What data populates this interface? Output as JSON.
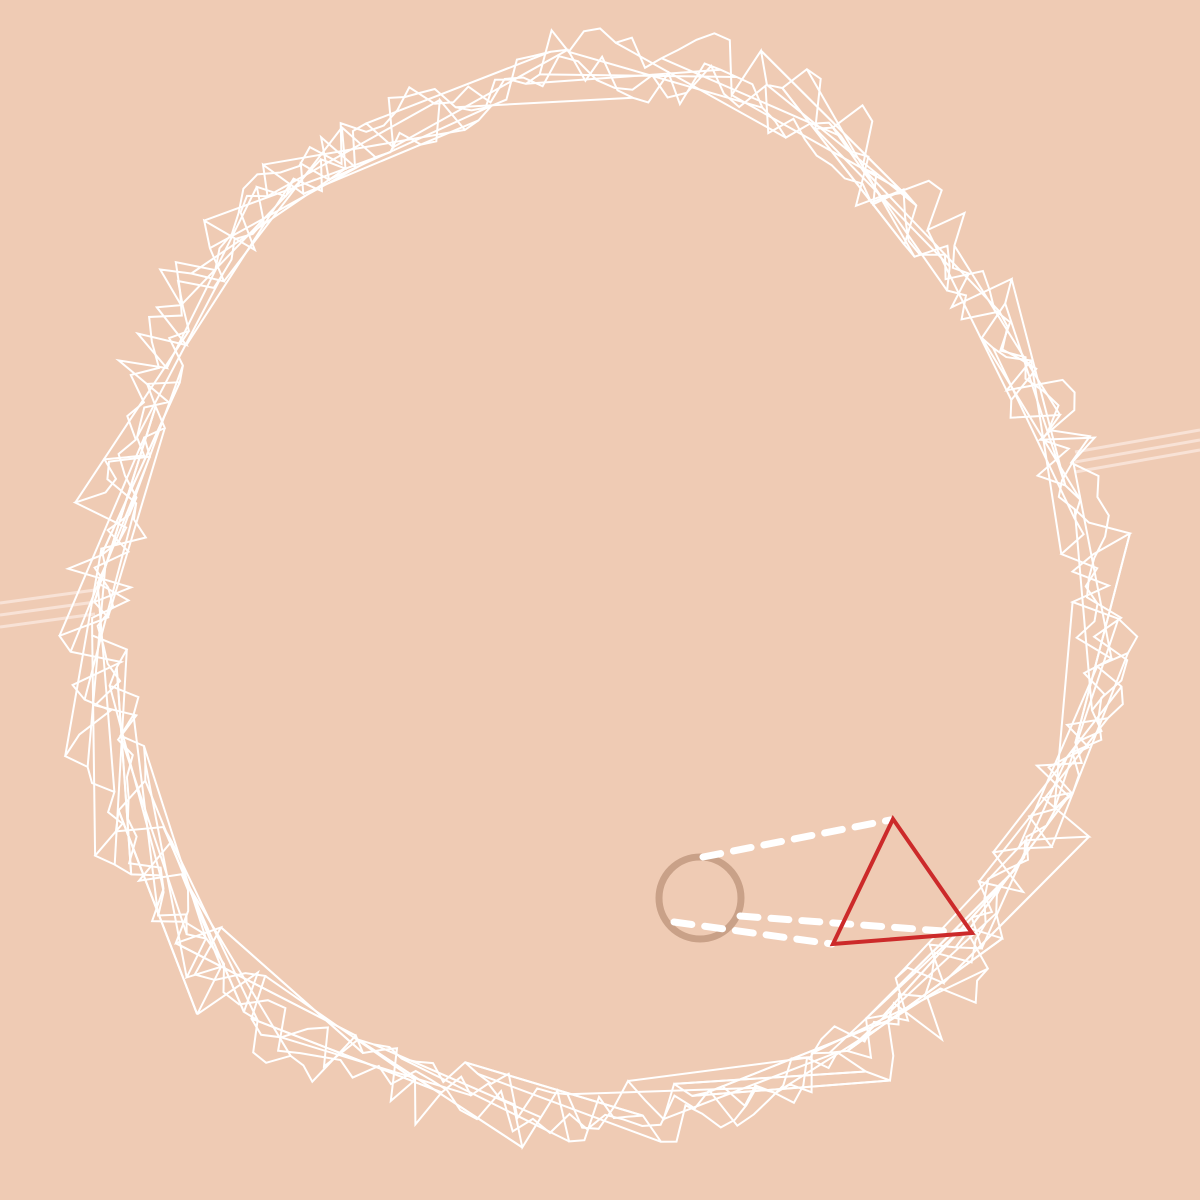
{
  "game": {
    "mode": "asteroids-style",
    "colors": {
      "background": "#efcbb4",
      "outline": "#ffffff",
      "ship": "#cc2a2a",
      "ring": "#c9a188",
      "trail": "#ffffff",
      "streak": "#f8e2d6"
    },
    "entities": [
      {
        "kind": "jagged-asteroid",
        "name": "large-asteroid"
      },
      {
        "kind": "player-ship",
        "name": "ship-triangle"
      },
      {
        "kind": "ring-target",
        "name": "ring-orb"
      }
    ]
  }
}
